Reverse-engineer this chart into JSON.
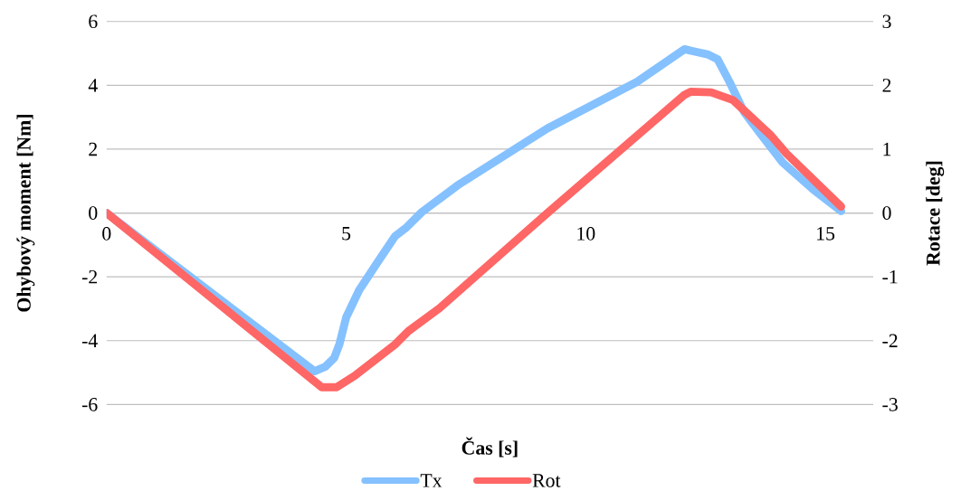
{
  "chart_data": {
    "type": "line",
    "xlabel": "Čas [s]",
    "ylabel": "Ohybový moment [Nm]",
    "y2label": "Rotace [deg]",
    "xlim": [
      0,
      16
    ],
    "xticks": [
      0,
      5,
      10,
      15
    ],
    "ylim": [
      -6,
      6
    ],
    "yticks": [
      -6,
      -4,
      -2,
      0,
      2,
      4,
      6
    ],
    "y2lim": [
      -3,
      3
    ],
    "y2ticks": [
      -3,
      -2,
      -1,
      0,
      1,
      2,
      3
    ],
    "grid": "y",
    "legend": "bottom",
    "line_style": "solid",
    "marker": "none",
    "series": [
      {
        "name": "Tx",
        "color": "#85c1ff",
        "x": [
          0,
          4.34,
          4.56,
          4.75,
          4.86,
          5.0,
          5.27,
          5.64,
          6.02,
          6.26,
          6.58,
          7.33,
          9.2,
          11.07,
          12.06,
          12.56,
          12.75,
          13.0,
          13.31,
          13.63,
          14.11,
          14.75,
          15.33
        ],
        "values": [
          0,
          -4.96,
          -4.82,
          -4.54,
          -4.11,
          -3.27,
          -2.42,
          -1.58,
          -0.73,
          -0.45,
          0.03,
          0.87,
          2.65,
          4.11,
          5.13,
          4.96,
          4.82,
          4.11,
          3.15,
          2.51,
          1.58,
          0.73,
          0.06
        ]
      },
      {
        "name": "Rot",
        "color": "#ff6666",
        "axis": "y2",
        "x": [
          0,
          4.49,
          4.8,
          5.18,
          6.02,
          6.3,
          6.95,
          9.2,
          12.06,
          12.19,
          12.62,
          13.07,
          13.87,
          14.19,
          15.33
        ],
        "values": [
          0,
          -2.73,
          -2.73,
          -2.55,
          -2.06,
          -1.85,
          -1.49,
          0,
          1.85,
          1.9,
          1.89,
          1.77,
          1.21,
          0.93,
          0.1
        ]
      }
    ]
  }
}
